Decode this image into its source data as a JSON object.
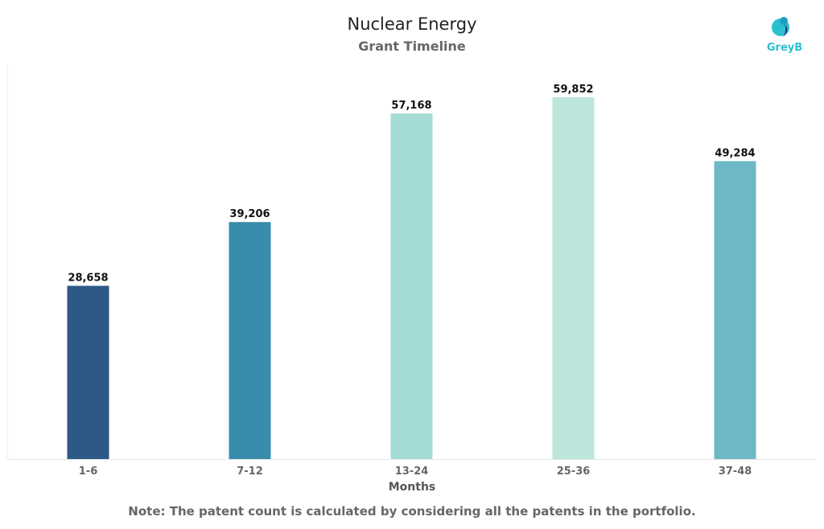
{
  "logo_text": "GreyB",
  "note": "Note: The patent count is calculated by considering all the patents in the portfolio.",
  "chart_data": {
    "type": "bar",
    "title": "Nuclear Energy",
    "subtitle": "Grant Timeline",
    "xlabel": "Months",
    "ylabel": "",
    "categories": [
      "1-6",
      "7-12",
      "13-24",
      "25-36",
      "37-48"
    ],
    "values": [
      28658,
      39206,
      57168,
      59852,
      49284
    ],
    "labels": [
      "28,658",
      "39,206",
      "57,168",
      "59,852",
      "49,284"
    ],
    "colors": [
      "#2d5986",
      "#378dab",
      "#a5dbd5",
      "#bce6dc",
      "#6cb8c5"
    ],
    "ylim": [
      0,
      65300
    ],
    "grid": false
  }
}
